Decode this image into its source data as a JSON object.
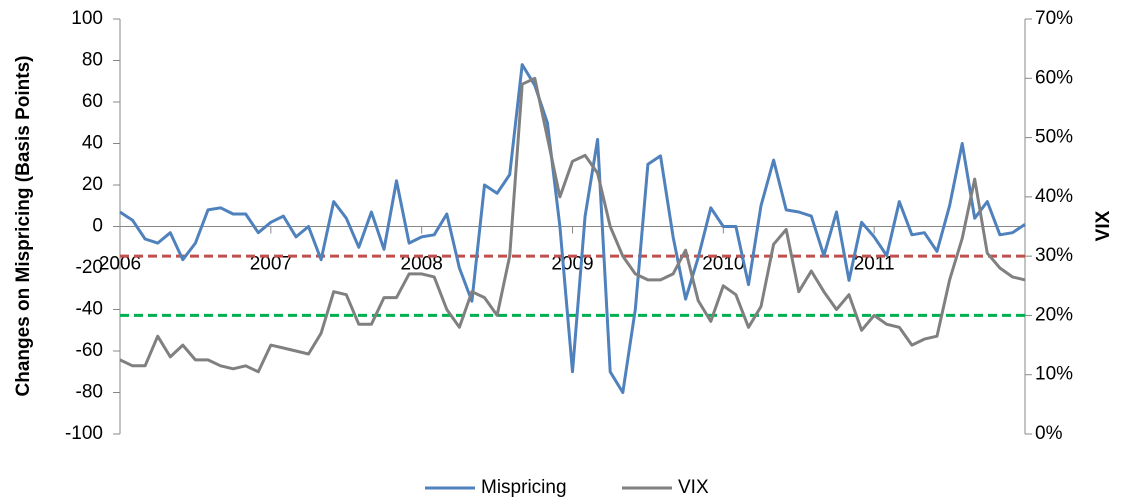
{
  "chart_data": {
    "type": "line",
    "y_label": "Changes on Mispricing (Basis Points)",
    "y2_label": "VIX",
    "categories": [
      "2006",
      null,
      null,
      null,
      null,
      null,
      null,
      null,
      null,
      null,
      null,
      null,
      "2007",
      null,
      null,
      null,
      null,
      null,
      null,
      null,
      null,
      null,
      null,
      null,
      "2008",
      null,
      null,
      null,
      null,
      null,
      null,
      null,
      null,
      null,
      null,
      null,
      "2009",
      null,
      null,
      null,
      null,
      null,
      null,
      null,
      null,
      null,
      null,
      null,
      "2010",
      null,
      null,
      null,
      null,
      null,
      null,
      null,
      null,
      null,
      null,
      null,
      "2011",
      null,
      null,
      null,
      null,
      null,
      null,
      null,
      null,
      null,
      null,
      null,
      null
    ],
    "series": [
      {
        "name": "Mispricing",
        "color": "#4f81bd",
        "values": [
          7,
          3,
          -6,
          -8,
          -3,
          -16,
          -8,
          8,
          9,
          6,
          6,
          -3,
          2,
          5,
          -5,
          0,
          -16,
          12,
          4,
          -10,
          7,
          -11,
          22,
          -8,
          -5,
          -4,
          6,
          -20,
          -36,
          20,
          16,
          25,
          78,
          68,
          50,
          0,
          -70,
          5,
          42,
          -70,
          -80,
          -40,
          30,
          34,
          -5,
          -35,
          -15,
          9,
          0,
          0,
          -28,
          10,
          32,
          8,
          7,
          5,
          -14,
          7,
          -26,
          2,
          -5,
          -14,
          12,
          -4,
          -3,
          -12,
          10,
          40,
          4,
          12,
          -4,
          -3,
          1
        ]
      },
      {
        "name": "VIX",
        "color": "#808080",
        "axis": "y2",
        "values": [
          12.5,
          11.5,
          11.5,
          16.5,
          13,
          15,
          12.5,
          12.5,
          11.5,
          11,
          11.5,
          10.5,
          15,
          14.5,
          14,
          13.5,
          17,
          24,
          23.5,
          18.5,
          18.5,
          23,
          23,
          27,
          27,
          26.5,
          21,
          18,
          24,
          23,
          20,
          30,
          59,
          60,
          50,
          40,
          46,
          47,
          44,
          35,
          30,
          27,
          26,
          26,
          27,
          31,
          22.5,
          19,
          25,
          23.5,
          18,
          21.5,
          32,
          34.5,
          24,
          27.5,
          24,
          21,
          23.5,
          17.5,
          20,
          18.5,
          18,
          15,
          16,
          16.5,
          26,
          33,
          43,
          30.5,
          28,
          26.5,
          26
        ]
      }
    ],
    "reference_lines": [
      {
        "value": 30,
        "color": "#c0504d",
        "axis": "y2"
      },
      {
        "value": 20,
        "color": "#00b050",
        "axis": "y2"
      }
    ],
    "ylim": [
      -100,
      100
    ],
    "yticks": [
      -100,
      -80,
      -60,
      -40,
      -20,
      0,
      20,
      40,
      60,
      80,
      100
    ],
    "y2lim": [
      0,
      70
    ],
    "y2ticks": [
      {
        "value": 0,
        "label": "0%"
      },
      {
        "value": 10,
        "label": "10%"
      },
      {
        "value": 20,
        "label": "20%"
      },
      {
        "value": 30,
        "label": "30%"
      },
      {
        "value": 40,
        "label": "40%"
      },
      {
        "value": 50,
        "label": "50%"
      },
      {
        "value": 60,
        "label": "60%"
      },
      {
        "value": 70,
        "label": "70%"
      }
    ],
    "legend": "bottom"
  }
}
